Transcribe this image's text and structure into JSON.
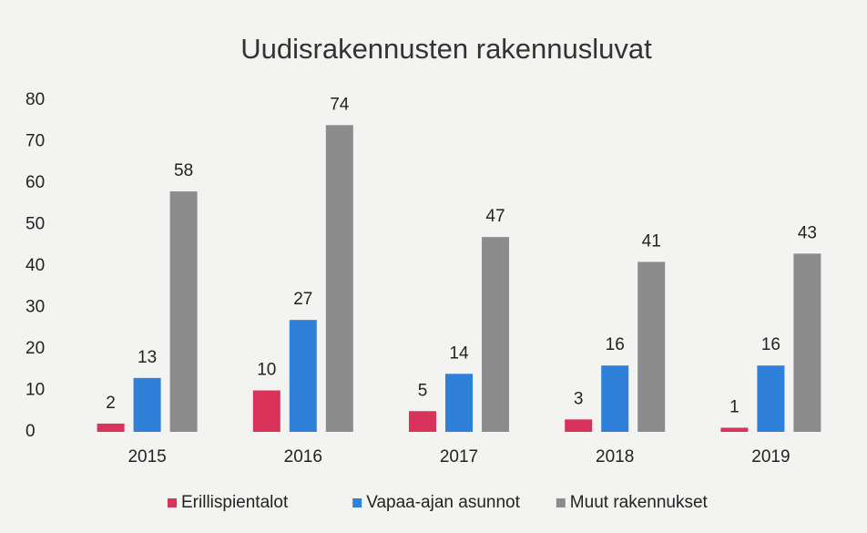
{
  "chart_data": {
    "type": "bar",
    "title": "Uudisrakennusten rakennusluvat",
    "categories": [
      "2015",
      "2016",
      "2017",
      "2018",
      "2019"
    ],
    "series": [
      {
        "name": "Erillispientalot",
        "color": "#d9335c",
        "values": [
          2,
          10,
          5,
          3,
          1
        ]
      },
      {
        "name": "Vapaa-ajan asunnot",
        "color": "#2f80d8",
        "values": [
          13,
          27,
          14,
          16,
          16
        ]
      },
      {
        "name": "Muut rakennukset",
        "color": "#8c8c8c",
        "values": [
          58,
          74,
          47,
          41,
          43
        ]
      }
    ],
    "ylim": [
      0,
      80
    ],
    "yticks": [
      0,
      10,
      20,
      30,
      40,
      50,
      60,
      70,
      80
    ],
    "grid": false,
    "legend": "bottom"
  }
}
